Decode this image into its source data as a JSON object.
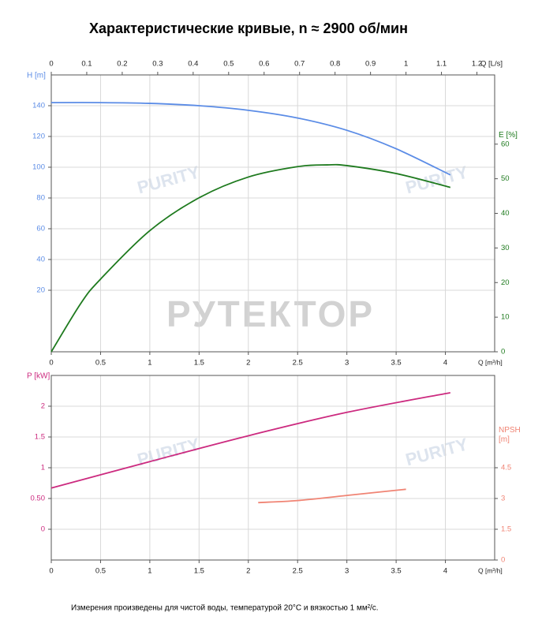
{
  "chart_data": [
    {
      "type": "line",
      "title": "Характеристические кривые, n ≈ 2900 об/мин",
      "xlabel": "Q [m³/h]",
      "xlim": [
        0,
        4.5
      ],
      "xticks": [
        0,
        0.5,
        1,
        1.5,
        2,
        2.5,
        3,
        3.5,
        4
      ],
      "x2label": "Q [L/s]",
      "x2lim": [
        0,
        1.25
      ],
      "x2ticks": [
        0,
        0.1,
        0.2,
        0.3,
        0.4,
        0.5,
        0.6,
        0.7,
        0.8,
        0.9,
        1,
        1.1,
        1.2
      ],
      "ylabel": "H [m]",
      "ylim": [
        -20,
        160
      ],
      "yticks": [
        20,
        40,
        60,
        80,
        100,
        120,
        140
      ],
      "y2label": "E [%]",
      "y2lim": [
        0,
        80
      ],
      "y2ticks": [
        0,
        10,
        20,
        30,
        40,
        50,
        60
      ],
      "grid": true,
      "series": [
        {
          "color": "#5b8ce6",
          "axis": "y",
          "x": [
            0,
            0.5,
            1,
            1.5,
            2,
            2.5,
            3,
            3.5,
            4.05
          ],
          "values": [
            142,
            142,
            141.5,
            140,
            137,
            132,
            124,
            112,
            95
          ]
        },
        {
          "color": "#1e7a1e",
          "axis": "y2",
          "x": [
            0,
            0.3,
            0.5,
            1,
            1.5,
            2,
            2.5,
            2.8,
            3,
            3.5,
            4.05
          ],
          "values": [
            0,
            14,
            21,
            35,
            44.5,
            50.5,
            53.5,
            54,
            53.8,
            51.5,
            47.5
          ]
        }
      ]
    },
    {
      "type": "line",
      "xlabel": "Q [m³/h]",
      "xlim": [
        0,
        4.5
      ],
      "xticks": [
        0,
        0.5,
        1,
        1.5,
        2,
        2.5,
        3,
        3.5,
        4
      ],
      "ylabel": "P [kW]",
      "ylim": [
        -0.5,
        2.5
      ],
      "yticks": [
        0,
        {
          "value": 0.5,
          "label": "0.50"
        },
        1,
        1.5,
        2
      ],
      "y2label": "NPSH [m]",
      "y2lim": [
        0,
        9
      ],
      "y2ticks": [
        0,
        1.5,
        3,
        4.5
      ],
      "grid": true,
      "series": [
        {
          "color": "#cc2a7f",
          "axis": "y",
          "x": [
            0,
            1,
            2,
            3,
            4.05
          ],
          "values": [
            0.67,
            1.1,
            1.52,
            1.9,
            2.22
          ]
        },
        {
          "color": "#f08474",
          "axis": "y2",
          "x": [
            2.1,
            2.5,
            3,
            3.6
          ],
          "values": [
            2.8,
            2.9,
            3.15,
            3.45
          ]
        }
      ]
    }
  ],
  "watermarks": [
    "РУТЕКТОР",
    "PURITY"
  ],
  "footnote": "Измерения произведены для чистой воды, температурой 20°C и вязкостью 1 мм²/с."
}
